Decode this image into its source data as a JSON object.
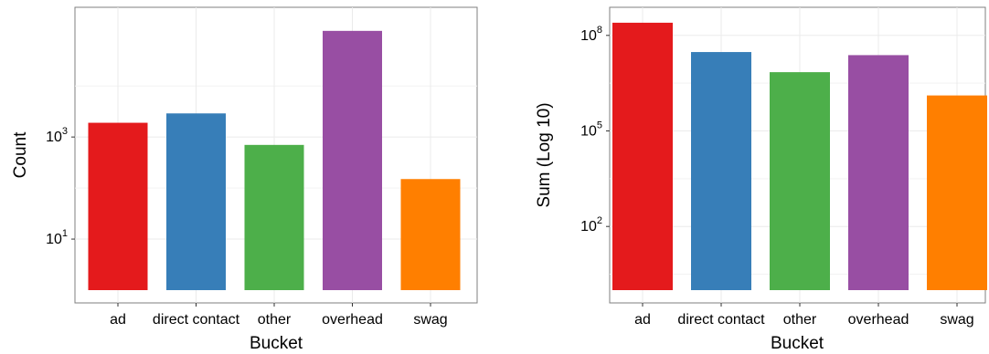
{
  "chart_data": [
    {
      "type": "bar",
      "scale": "log10",
      "categories": [
        "ad",
        "direct contact",
        "other",
        "overhead",
        "swag"
      ],
      "values": [
        1900,
        2900,
        700,
        120000,
        150
      ],
      "colors": [
        "#e41a1c",
        "#377eb8",
        "#4daf4a",
        "#984ea3",
        "#ff7f00"
      ],
      "xlabel": "Bucket",
      "ylabel": "Count",
      "yticks": [
        {
          "base": "10",
          "exp": "1",
          "value": 10
        },
        {
          "base": "10",
          "exp": "3",
          "value": 1000
        }
      ],
      "ylim": [
        1,
        250000
      ],
      "grid": true
    },
    {
      "type": "bar",
      "scale": "log10",
      "categories": [
        "ad",
        "direct contact",
        "other",
        "overhead",
        "swag"
      ],
      "values": [
        250000000,
        30000000,
        7000000,
        24000000,
        1300000
      ],
      "colors": [
        "#e41a1c",
        "#377eb8",
        "#4daf4a",
        "#984ea3",
        "#ff7f00"
      ],
      "xlabel": "Bucket",
      "ylabel": "Sum (Log 10)",
      "yticks": [
        {
          "base": "10",
          "exp": "2",
          "value": 100
        },
        {
          "base": "10",
          "exp": "5",
          "value": 100000
        },
        {
          "base": "10",
          "exp": "8",
          "value": 100000000
        }
      ],
      "ylim": [
        1,
        450000000
      ],
      "grid": true
    }
  ]
}
